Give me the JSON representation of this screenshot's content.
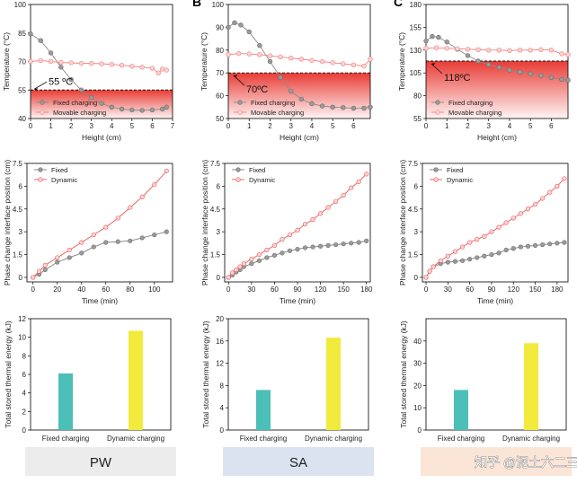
{
  "panel_letters": [
    "B",
    "C"
  ],
  "watermark": "知乎 @泥土六二三",
  "columns": [
    {
      "material": "PW",
      "band_color": "#ececec"
    },
    {
      "material": "SA",
      "band_color": "#dbe3f0"
    },
    {
      "material": "",
      "band_color": "#fbe5d6"
    }
  ],
  "chart_data": [
    {
      "id": "pw-temp",
      "type": "line",
      "material": "PW",
      "xlabel": "Height (cm)",
      "ylabel": "Temperature (°C)",
      "xlim": [
        0,
        7
      ],
      "ylim": [
        40,
        100
      ],
      "xticks": [
        0,
        1,
        2,
        3,
        4,
        5,
        6,
        7
      ],
      "yticks": [
        40,
        55,
        70,
        85,
        100
      ],
      "threshold": {
        "value": 55,
        "label": "55 ºC"
      },
      "legend": [
        "Fixed charging",
        "Movable charging"
      ],
      "series": [
        {
          "name": "Fixed charging",
          "color": "#8c8c8c",
          "x": [
            0,
            0.5,
            1,
            1.5,
            2,
            2.5,
            3,
            3.5,
            4,
            4.5,
            5,
            5.5,
            6,
            6.5,
            6.7
          ],
          "y": [
            84.5,
            81,
            74.5,
            67,
            60.5,
            55,
            51,
            48,
            46,
            45,
            44.5,
            44.3,
            44.5,
            45,
            46
          ]
        },
        {
          "name": "Movable charging",
          "color": "#f08080",
          "x": [
            0,
            0.5,
            1,
            1.5,
            2,
            2.5,
            3,
            3.5,
            4,
            4.5,
            5,
            5.5,
            6,
            6.3,
            6.5,
            6.7
          ],
          "y": [
            70,
            70.5,
            70,
            69.5,
            69.3,
            69,
            69,
            68.8,
            68.5,
            68,
            67.5,
            67,
            66.5,
            64,
            66,
            65.5
          ]
        }
      ]
    },
    {
      "id": "sa-temp",
      "type": "line",
      "material": "SA",
      "xlabel": "Height (cm)",
      "ylabel": "Temperature (°C)",
      "xlim": [
        0,
        6.8
      ],
      "ylim": [
        50,
        100
      ],
      "xticks": [
        0,
        1,
        2,
        3,
        4,
        5,
        6
      ],
      "yticks": [
        50,
        60,
        70,
        80,
        90,
        100
      ],
      "threshold": {
        "value": 70,
        "label": "70ºC"
      },
      "legend": [
        "Fixed charging",
        "Movable charging"
      ],
      "series": [
        {
          "name": "Fixed charging",
          "color": "#8c8c8c",
          "x": [
            0,
            0.3,
            0.6,
            1,
            1.5,
            2,
            2.5,
            3,
            3.5,
            4,
            4.5,
            5,
            5.5,
            6,
            6.5,
            6.8
          ],
          "y": [
            90,
            92,
            91,
            88,
            82,
            75,
            68,
            62,
            58.5,
            56.5,
            55.5,
            55,
            54.8,
            54.5,
            54.5,
            55
          ]
        },
        {
          "name": "Movable charging",
          "color": "#f08080",
          "x": [
            0,
            0.5,
            1,
            1.5,
            2,
            2.5,
            3,
            3.5,
            4,
            4.5,
            5,
            5.5,
            6,
            6.5,
            6.8
          ],
          "y": [
            78,
            78.5,
            78.3,
            78,
            77.5,
            77,
            76.5,
            76,
            75.5,
            75,
            74.5,
            74,
            73.5,
            73,
            76
          ]
        }
      ]
    },
    {
      "id": "c-temp",
      "type": "line",
      "material": "",
      "xlabel": "Height (cm)",
      "ylabel": "Temperature (°C)",
      "xlim": [
        0,
        6.8
      ],
      "ylim": [
        55,
        180
      ],
      "xticks": [
        0,
        1,
        2,
        3,
        4,
        5,
        6
      ],
      "yticks": [
        55,
        80,
        105,
        130,
        155,
        180
      ],
      "threshold": {
        "value": 118,
        "label": "118ºC"
      },
      "legend": [
        "Fixed charging",
        "Movable charging"
      ],
      "series": [
        {
          "name": "Fixed charging",
          "color": "#8c8c8c",
          "x": [
            0,
            0.3,
            0.6,
            1,
            1.5,
            2,
            2.5,
            3,
            3.5,
            4,
            4.5,
            5,
            5.5,
            6,
            6.5,
            6.8
          ],
          "y": [
            140,
            145,
            144,
            139,
            131,
            124,
            118,
            114,
            111,
            108,
            106,
            104,
            102,
            100,
            98,
            97
          ]
        },
        {
          "name": "Movable charging",
          "color": "#f08080",
          "x": [
            0,
            0.5,
            1,
            1.5,
            2,
            2.5,
            3,
            3.5,
            4,
            4.5,
            5,
            5.5,
            6,
            6.5,
            6.8
          ],
          "y": [
            132,
            132.5,
            132,
            131.5,
            131,
            130.5,
            130,
            130,
            129.5,
            130,
            130,
            130.5,
            130,
            126,
            125
          ]
        }
      ]
    },
    {
      "id": "pw-interface",
      "type": "line",
      "material": "PW",
      "xlabel": "Time (min)",
      "ylabel": "Phase change interface position (cm)",
      "xlim": [
        -5,
        115
      ],
      "ylim": [
        -0.3,
        7.5
      ],
      "xticks": [
        0,
        20,
        40,
        60,
        80,
        100
      ],
      "yticks": [
        0,
        1.5,
        3,
        4.5,
        6,
        7.5
      ],
      "legend": [
        "Fixed",
        "Dynamic"
      ],
      "series": [
        {
          "name": "Fixed",
          "color": "#7f7f7f",
          "x": [
            0,
            5,
            10,
            20,
            30,
            40,
            50,
            60,
            70,
            80,
            90,
            100,
            110
          ],
          "y": [
            0,
            0.2,
            0.5,
            1.0,
            1.3,
            1.6,
            2.0,
            2.3,
            2.35,
            2.4,
            2.6,
            2.8,
            3.0
          ]
        },
        {
          "name": "Dynamic",
          "color": "#e85858",
          "x": [
            0,
            5,
            10,
            20,
            30,
            40,
            50,
            60,
            70,
            80,
            90,
            100,
            110
          ],
          "y": [
            0,
            0.4,
            0.8,
            1.3,
            1.8,
            2.3,
            2.8,
            3.3,
            3.9,
            4.6,
            5.3,
            6.1,
            7.0
          ]
        }
      ]
    },
    {
      "id": "sa-interface",
      "type": "line",
      "material": "SA",
      "xlabel": "Time (min)",
      "ylabel": "Phase change interface position (cm)",
      "xlim": [
        -5,
        185
      ],
      "ylim": [
        -0.3,
        7.5
      ],
      "xticks": [
        0,
        30,
        60,
        90,
        120,
        150,
        180
      ],
      "yticks": [
        0,
        1.5,
        3,
        4.5,
        6,
        7.5
      ],
      "legend": [
        "Fixed",
        "Dynamic"
      ],
      "series": [
        {
          "name": "Fixed",
          "color": "#7f7f7f",
          "x": [
            0,
            5,
            10,
            15,
            20,
            30,
            40,
            50,
            60,
            70,
            80,
            90,
            100,
            110,
            120,
            130,
            140,
            150,
            160,
            170,
            180
          ],
          "y": [
            0,
            0.15,
            0.35,
            0.5,
            0.7,
            0.9,
            1.1,
            1.3,
            1.45,
            1.6,
            1.75,
            1.85,
            1.95,
            2.0,
            2.05,
            2.1,
            2.15,
            2.2,
            2.25,
            2.3,
            2.4
          ]
        },
        {
          "name": "Dynamic",
          "color": "#e85858",
          "x": [
            0,
            5,
            10,
            15,
            20,
            30,
            40,
            50,
            60,
            70,
            80,
            90,
            100,
            110,
            120,
            130,
            140,
            150,
            160,
            170,
            180
          ],
          "y": [
            0,
            0.3,
            0.5,
            0.7,
            0.9,
            1.2,
            1.5,
            1.8,
            2.1,
            2.5,
            2.8,
            3.1,
            3.5,
            3.8,
            4.2,
            4.6,
            5.0,
            5.4,
            5.9,
            6.3,
            6.8
          ]
        }
      ]
    },
    {
      "id": "c-interface",
      "type": "line",
      "material": "",
      "xlabel": "Time (min)",
      "ylabel": "Phase change interface position (cm)",
      "xlim": [
        -5,
        195
      ],
      "ylim": [
        -0.3,
        7.5
      ],
      "xticks": [
        0,
        30,
        60,
        90,
        120,
        150,
        180
      ],
      "yticks": [
        0,
        1.5,
        3,
        4.5,
        6,
        7.5
      ],
      "legend": [
        "Fixed",
        "Dynamic"
      ],
      "series": [
        {
          "name": "Fixed",
          "color": "#7f7f7f",
          "x": [
            0,
            5,
            10,
            20,
            30,
            40,
            50,
            60,
            70,
            80,
            90,
            100,
            110,
            120,
            130,
            140,
            150,
            160,
            170,
            180,
            190
          ],
          "y": [
            0,
            0.4,
            0.7,
            0.9,
            1.0,
            1.05,
            1.1,
            1.2,
            1.3,
            1.4,
            1.5,
            1.6,
            1.8,
            1.9,
            2.0,
            2.05,
            2.1,
            2.15,
            2.2,
            2.25,
            2.3
          ]
        },
        {
          "name": "Dynamic",
          "color": "#e85858",
          "x": [
            0,
            5,
            10,
            20,
            30,
            40,
            50,
            60,
            70,
            80,
            90,
            100,
            110,
            120,
            130,
            140,
            150,
            160,
            170,
            180,
            190
          ],
          "y": [
            0,
            0.4,
            0.7,
            1.1,
            1.4,
            1.7,
            2.0,
            2.3,
            2.5,
            2.7,
            3.0,
            3.3,
            3.6,
            3.9,
            4.2,
            4.5,
            4.8,
            5.2,
            5.6,
            6.0,
            6.5
          ]
        }
      ]
    },
    {
      "id": "pw-energy",
      "type": "bar",
      "material": "PW",
      "ylabel": "Total stored thermal energy (kJ)",
      "ylim": [
        0,
        12
      ],
      "yticks": [
        0,
        2,
        4,
        6,
        8,
        10,
        12
      ],
      "categories": [
        "Fixed charging",
        "Dynamic charging"
      ],
      "values": [
        6.1,
        10.7
      ],
      "colors": [
        "#4bbfb8",
        "#f2ea3c"
      ]
    },
    {
      "id": "sa-energy",
      "type": "bar",
      "material": "SA",
      "ylabel": "Total stored thermal energy (kJ)",
      "ylim": [
        0,
        20
      ],
      "yticks": [
        0,
        4,
        8,
        12,
        16,
        20
      ],
      "categories": [
        "Fixed charging",
        "Dynamic charging"
      ],
      "values": [
        7.2,
        16.6
      ],
      "colors": [
        "#4bbfb8",
        "#f2ea3c"
      ]
    },
    {
      "id": "c-energy",
      "type": "bar",
      "material": "",
      "ylabel": "Total stored thermal energy (kJ)",
      "ylim": [
        0,
        50
      ],
      "yticks": [
        0,
        10,
        20,
        30,
        40
      ],
      "categories": [
        "Fixed charging",
        "Dynamic charging"
      ],
      "values": [
        18,
        39
      ],
      "colors": [
        "#4bbfb8",
        "#f2ea3c"
      ]
    }
  ]
}
